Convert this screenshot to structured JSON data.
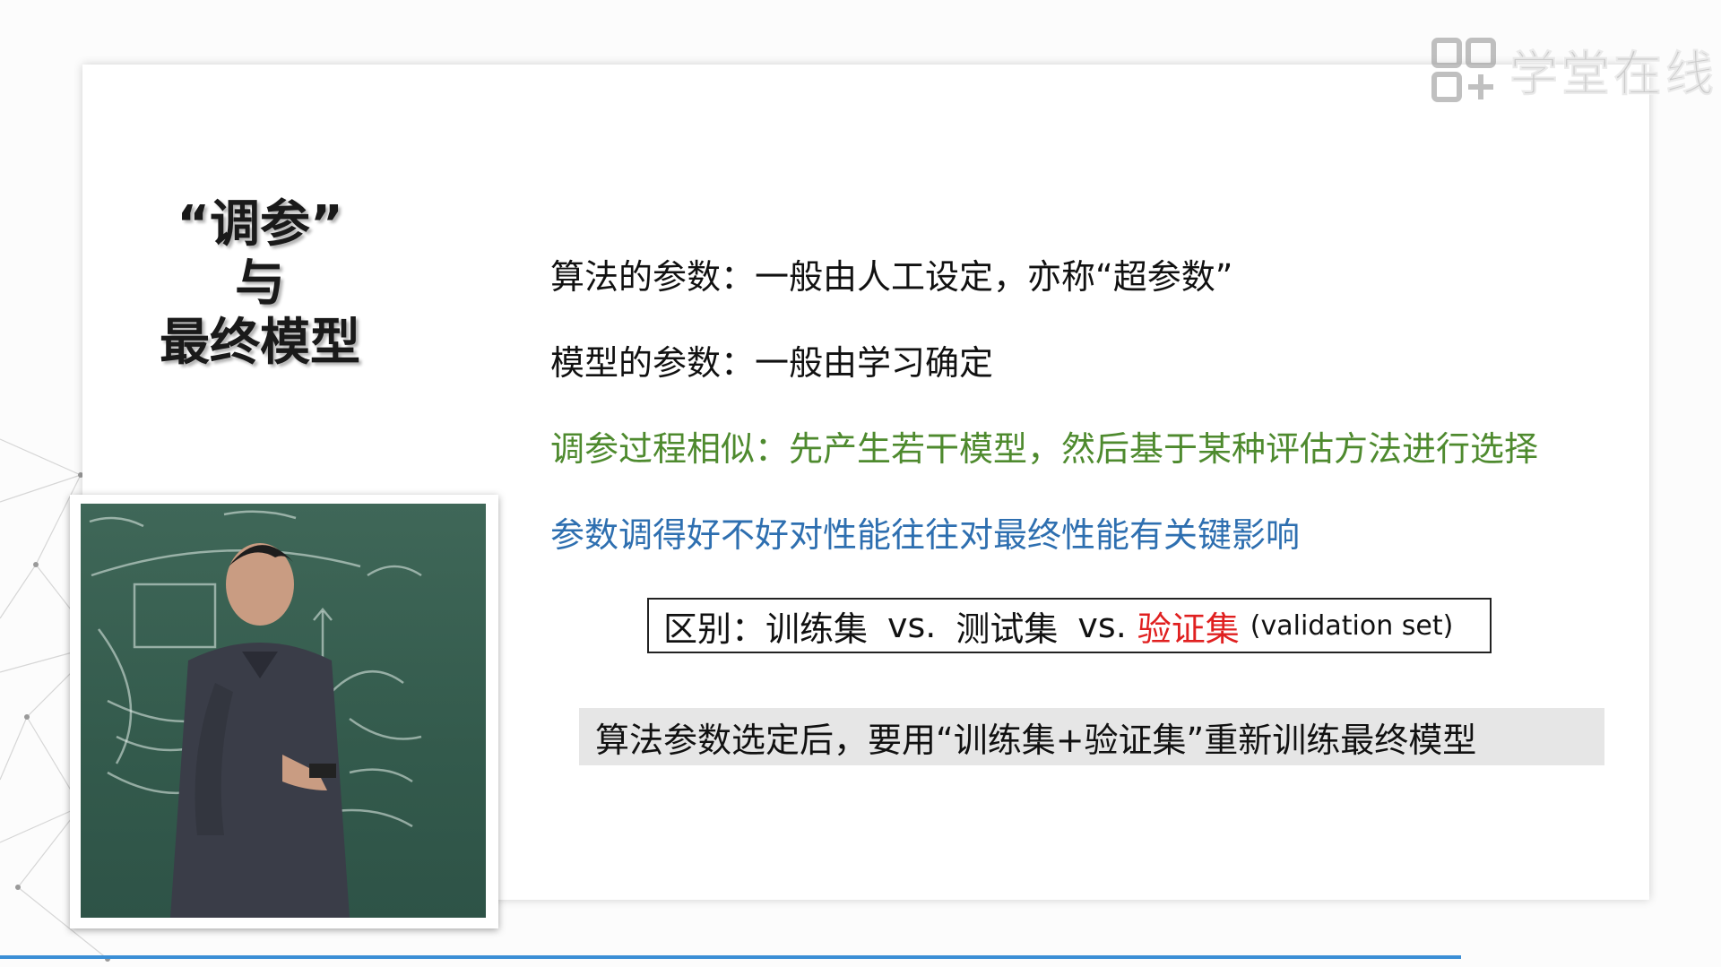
{
  "watermark": {
    "brand": "学堂在线",
    "icon": "xuetang-logo-icon"
  },
  "slide": {
    "title_lines": [
      "“调参”",
      "与",
      "最终模型"
    ],
    "lines": [
      "算法的参数：一般由人工设定，亦称“超参数”",
      "模型的参数：一般由学习确定",
      "调参过程相似：先产生若干模型，然后基于某种评估方法进行选择",
      "参数调得好不好对性能往往对最终性能有关键影响"
    ],
    "distinction": {
      "prefix": "区别：训练集",
      "vs1": "vs.",
      "test": "测试集",
      "vs2": "vs.",
      "validation": "验证集",
      "validation_en": "(validation set)"
    },
    "final_note": "算法参数选定后，要用“训练集+验证集”重新训练最终模型"
  },
  "video": {
    "label": "lecturer-video"
  },
  "colors": {
    "green": "#4e8a2e",
    "blue": "#2e6fb0",
    "red": "#e02020",
    "accent_line": "#3b8fd6"
  }
}
